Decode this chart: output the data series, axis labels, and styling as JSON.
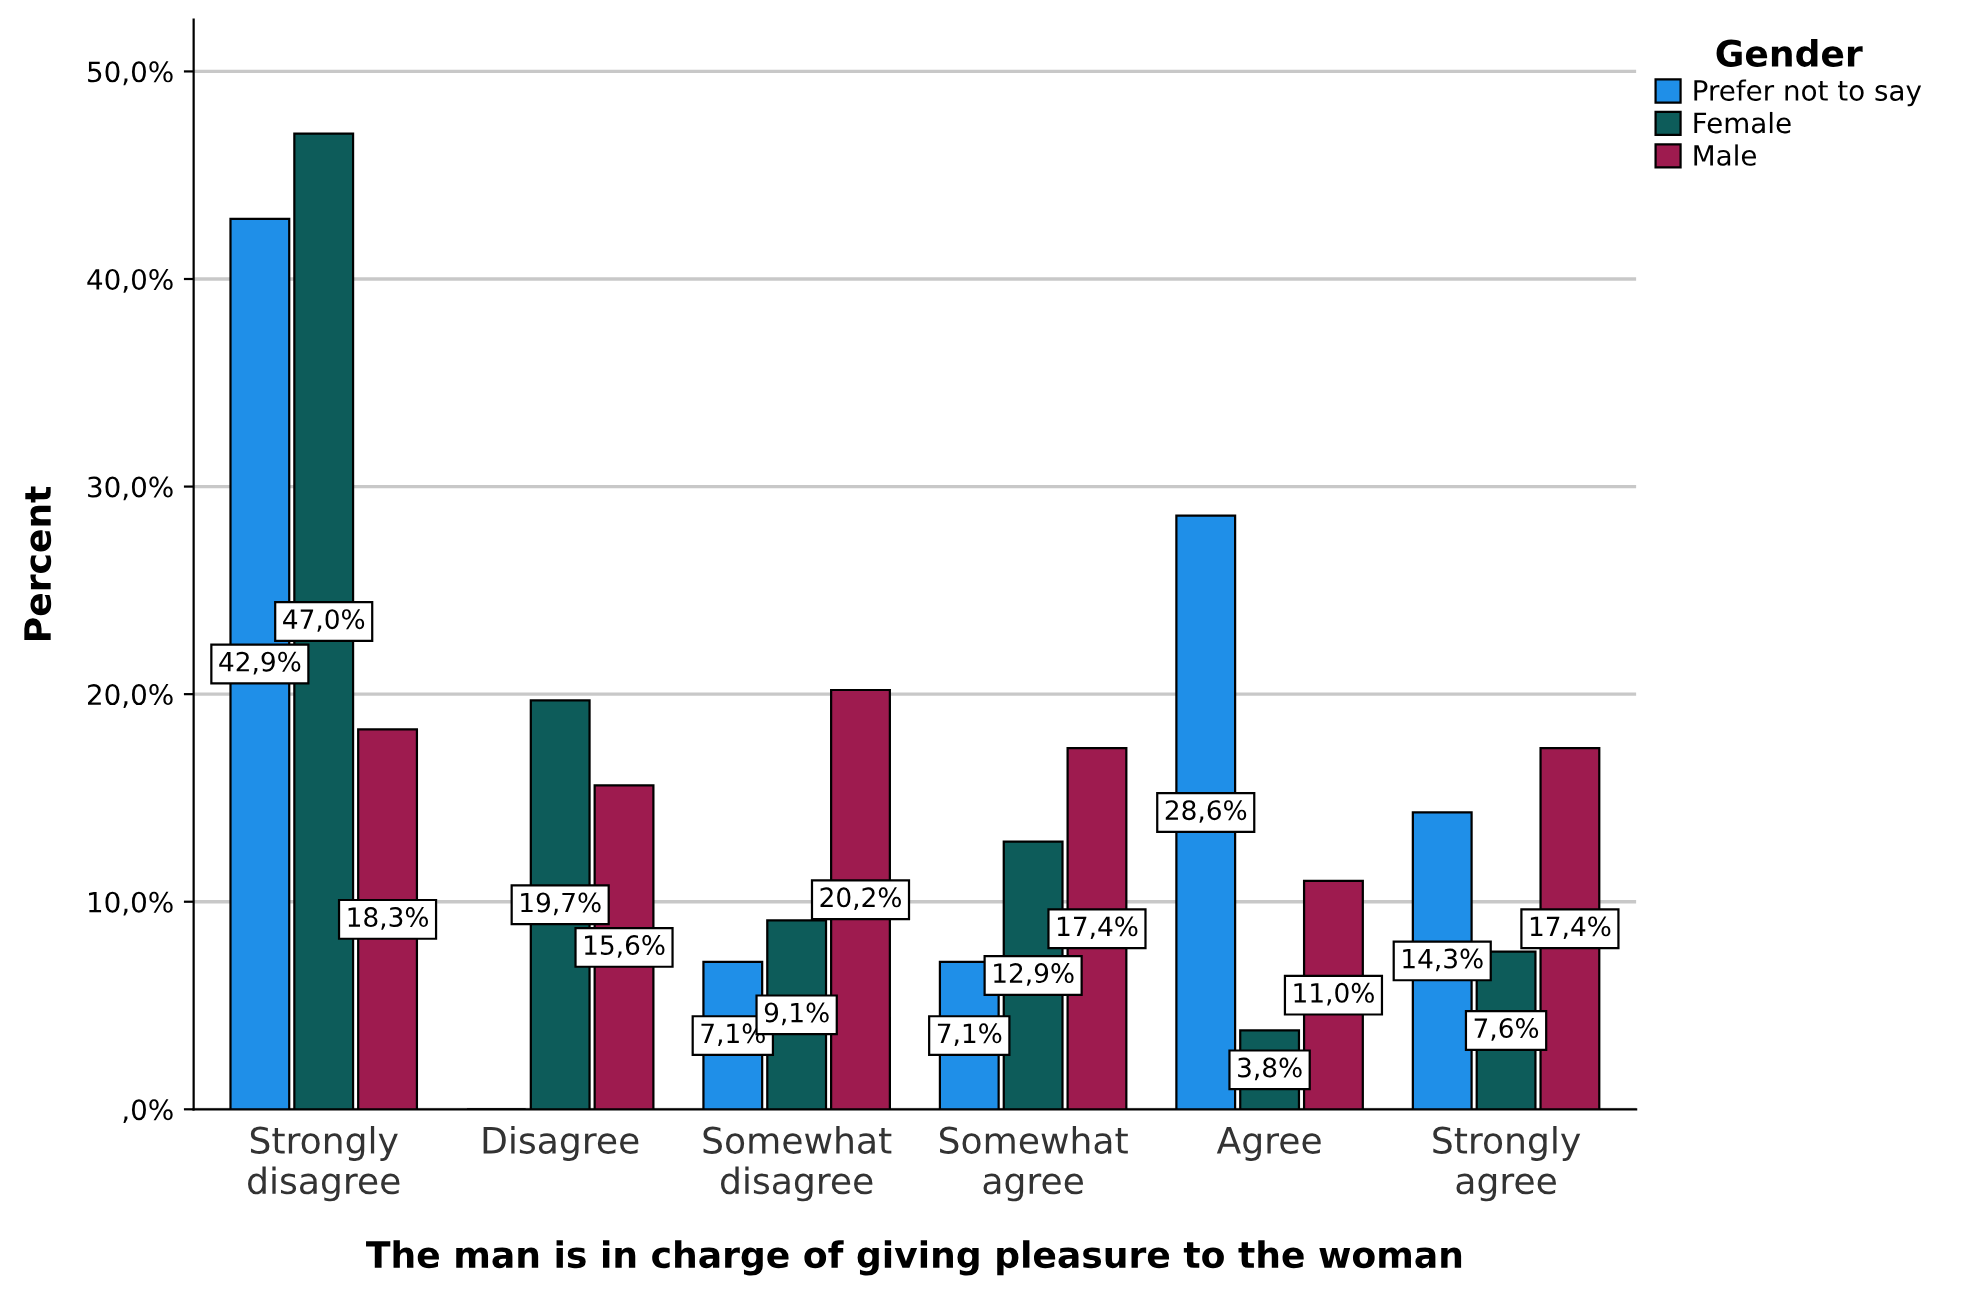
{
  "chart_data": {
    "type": "bar",
    "xlabel": "The man is in charge of giving pleasure to the woman",
    "ylabel": "Percent",
    "legend_title": "Gender",
    "categories": [
      "Strongly\ndisagree",
      "Disagree",
      "Somewhat\ndisagree",
      "Somewhat\nagree",
      "Agree",
      "Strongly\nagree"
    ],
    "series": [
      {
        "name": "Prefer not to say",
        "color": "#1f8fe8",
        "values": [
          42.9,
          0,
          7.1,
          7.1,
          28.6,
          14.3
        ],
        "value_labels": [
          "42,9%",
          null,
          "7,1%",
          "7,1%",
          "28,6%",
          "14,3%"
        ]
      },
      {
        "name": "Female",
        "color": "#0d5c5a",
        "values": [
          47.0,
          19.7,
          9.1,
          12.9,
          3.8,
          7.6
        ],
        "value_labels": [
          "47,0%",
          "19,7%",
          "9,1%",
          "12,9%",
          "3,8%",
          "7,6%"
        ]
      },
      {
        "name": "Male",
        "color": "#9e1b4f",
        "values": [
          18.3,
          15.6,
          20.2,
          17.4,
          11.0,
          17.4
        ],
        "value_labels": [
          "18,3%",
          "15,6%",
          "20,2%",
          "17,4%",
          "11,0%",
          "17,4%"
        ]
      }
    ],
    "ylim": [
      0,
      52.5
    ],
    "yticks": [
      {
        "value": 0,
        "label": ",0%"
      },
      {
        "value": 10,
        "label": "10,0%"
      },
      {
        "value": 20,
        "label": "20,0%"
      },
      {
        "value": 30,
        "label": "30,0%"
      },
      {
        "value": 40,
        "label": "40,0%"
      },
      {
        "value": 50,
        "label": "50,0%"
      }
    ],
    "grid": "y",
    "legend": "top right"
  }
}
